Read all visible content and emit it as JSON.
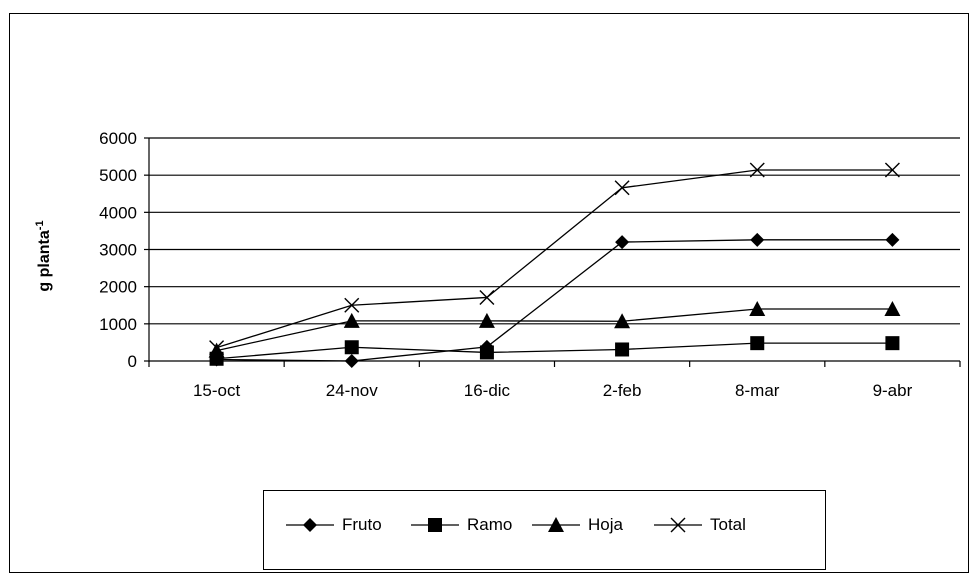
{
  "chart_data": {
    "type": "line",
    "categories": [
      "15-oct",
      "24-nov",
      "16-dic",
      "2-feb",
      "8-mar",
      "9-abr"
    ],
    "ylabel": "g planta-1",
    "ylabel_main": "g planta",
    "ylabel_sup": "-1",
    "ylim": [
      0,
      6000
    ],
    "yticks": [
      "0",
      "1000",
      "2000",
      "3000",
      "4000",
      "5000",
      "6000"
    ],
    "grid": true,
    "legend_position": "bottom",
    "series": [
      {
        "name": "Fruto",
        "marker": "diamond",
        "values": [
          40,
          0,
          380,
          3200,
          3260,
          3260
        ]
      },
      {
        "name": "Ramo",
        "marker": "square",
        "values": [
          60,
          370,
          230,
          310,
          480,
          480
        ]
      },
      {
        "name": "Hoja",
        "marker": "triangle",
        "values": [
          280,
          1080,
          1080,
          1070,
          1400,
          1400
        ]
      },
      {
        "name": "Total",
        "marker": "x",
        "values": [
          360,
          1500,
          1710,
          4660,
          5140,
          5140
        ]
      }
    ],
    "line_color": "#000000"
  }
}
